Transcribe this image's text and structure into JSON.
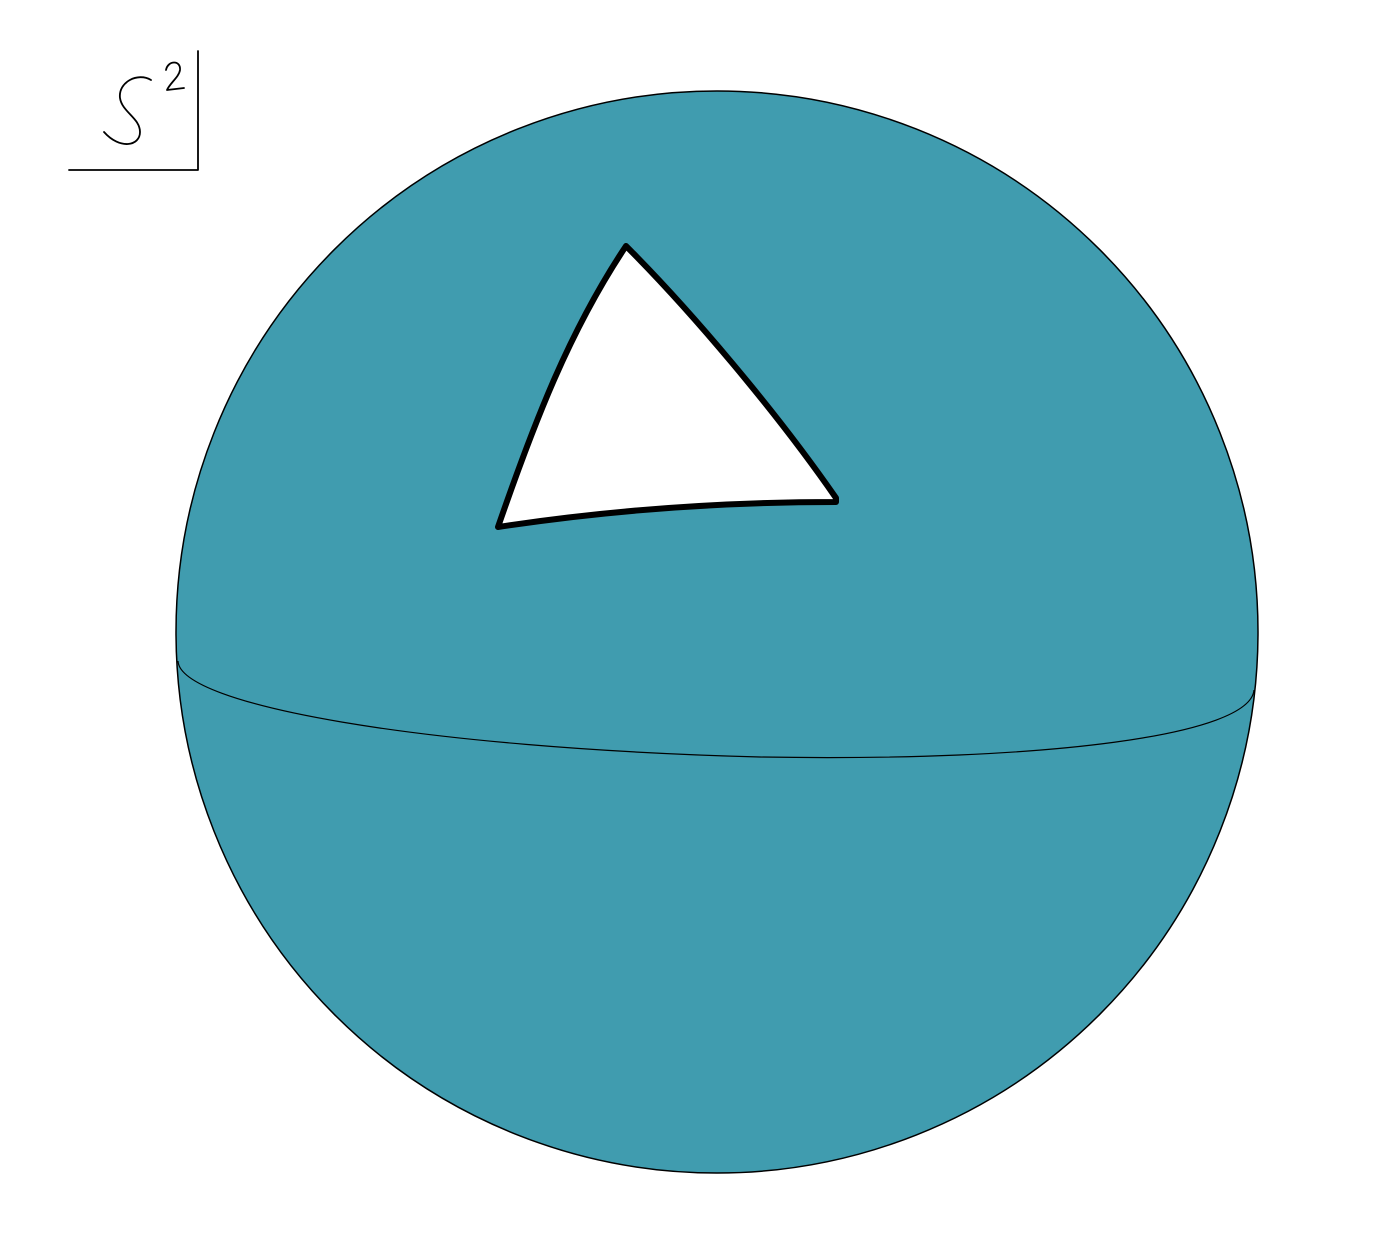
{
  "label": {
    "text": "S²",
    "base": "S",
    "exponent": "2"
  },
  "colors": {
    "sphere_fill": "#409CAF",
    "outline": "#000000",
    "triangle_fill": "#FFFFFF",
    "background": "#FFFFFF"
  }
}
